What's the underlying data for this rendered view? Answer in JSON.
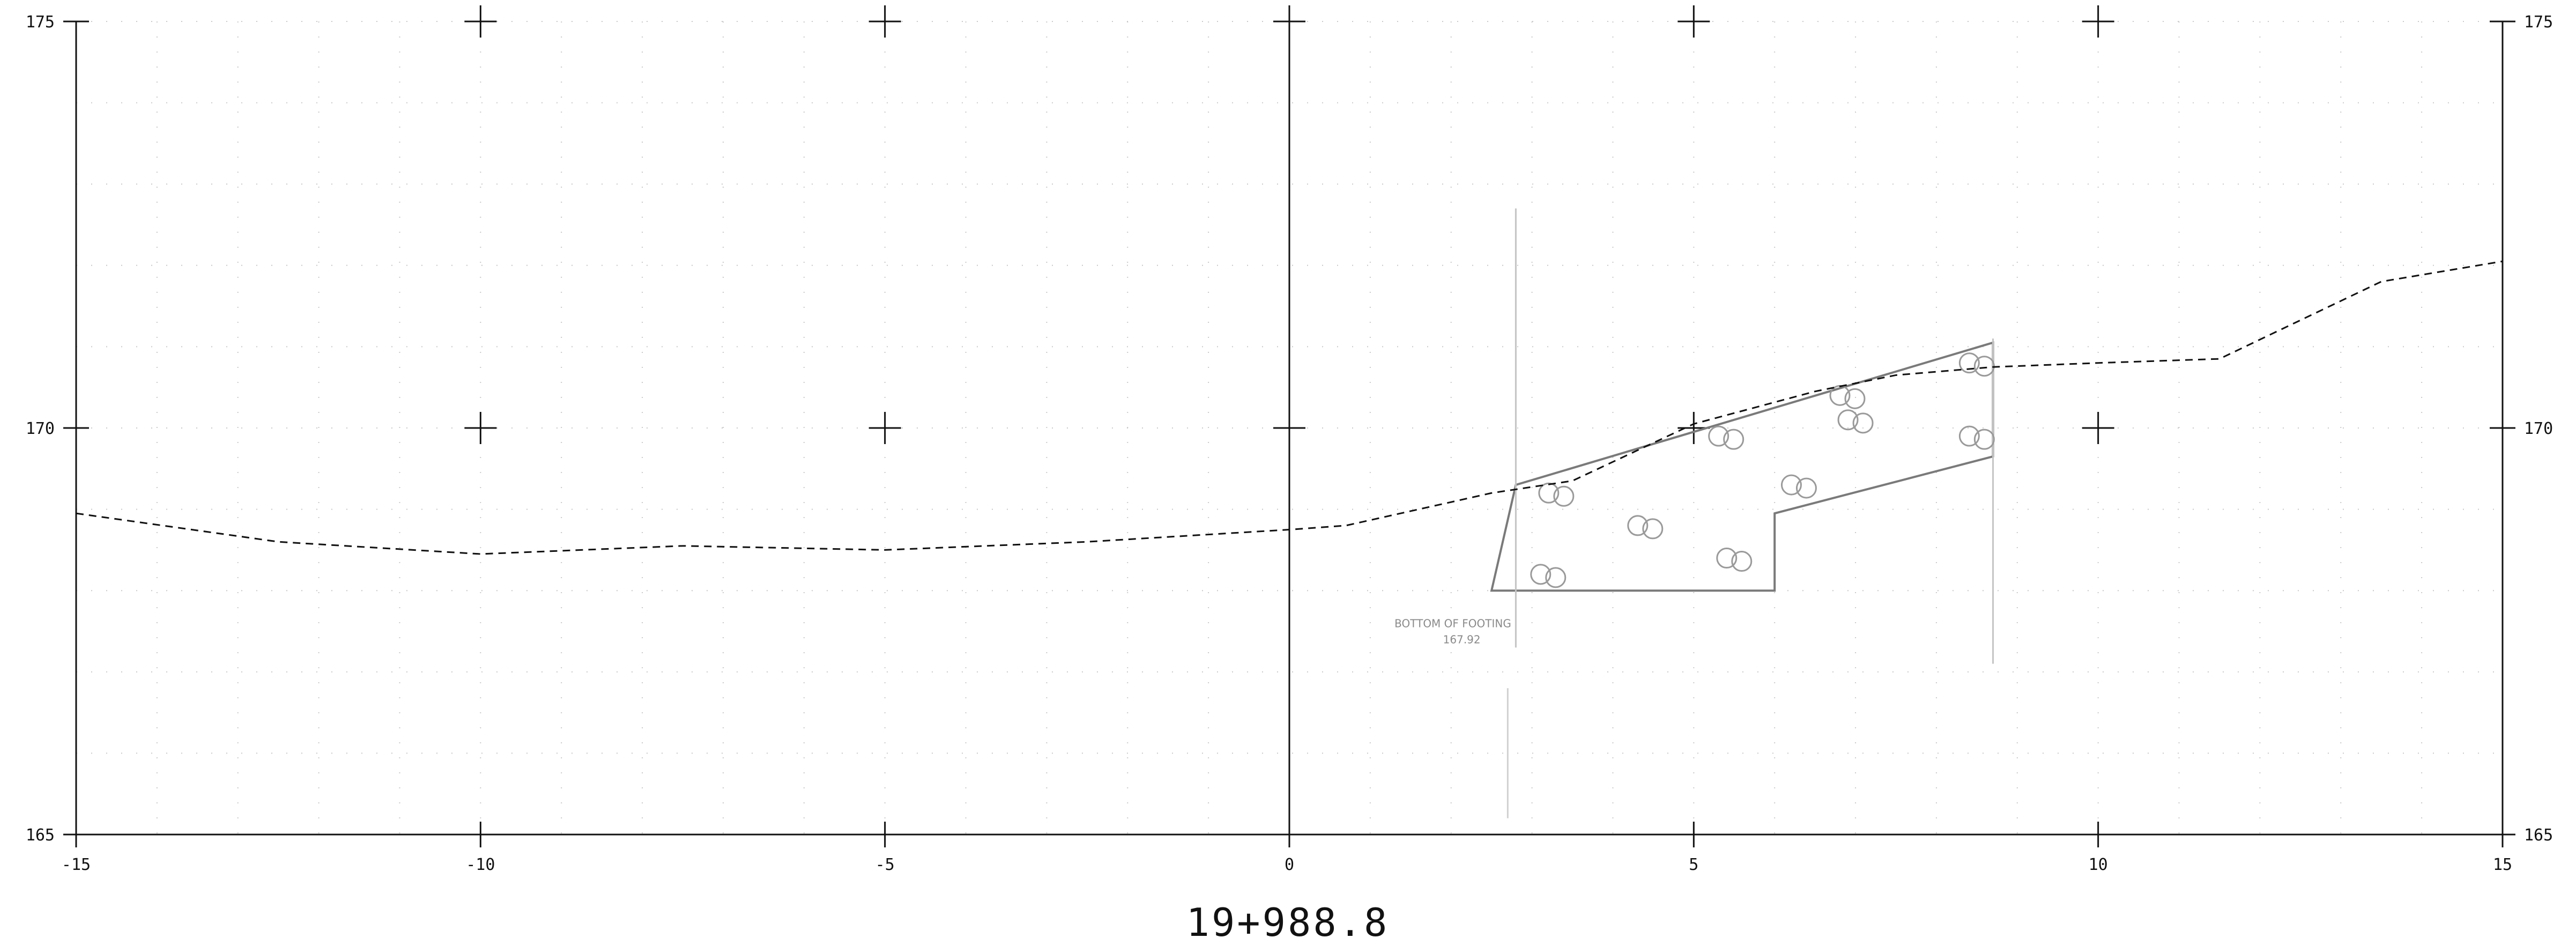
{
  "chart_data": {
    "type": "line",
    "title": "",
    "xlabel": "",
    "ylabel": "",
    "xlim": [
      -15,
      15
    ],
    "ylim": [
      165,
      175
    ],
    "x_ticks": [
      -15,
      -10,
      -5,
      0,
      5,
      10,
      15
    ],
    "x_tick_labels": [
      "-15",
      "-10",
      "-5",
      "0",
      "5",
      "10",
      "15"
    ],
    "y_ticks": [
      165,
      170,
      175
    ],
    "y_tick_labels": [
      "165",
      "170",
      "175"
    ],
    "grid": "dotted minor grid with cross markers at major intersections",
    "series": [
      {
        "style": "dashed",
        "x": [
          -15,
          -12.5,
          -10,
          -7.5,
          -5,
          -2.5,
          0,
          0.7,
          2.5,
          3.5,
          5,
          6.5,
          7.5,
          8.7,
          10,
          11.5,
          13.5,
          15
        ],
        "y": [
          168.95,
          168.6,
          168.45,
          168.55,
          168.5,
          168.6,
          168.75,
          168.8,
          169.2,
          169.35,
          170.05,
          170.45,
          170.65,
          170.75,
          170.8,
          170.85,
          171.8,
          172.05
        ]
      }
    ],
    "footing_outline": {
      "x": [
        2.5,
        6.0,
        6.0,
        8.7,
        8.7,
        2.8
      ],
      "y": [
        168.0,
        168.0,
        168.95,
        169.65,
        171.05,
        169.3
      ]
    },
    "annotations": [
      {
        "text": "BOTTOM OF FOOTING",
        "x": 1.3,
        "y": 167.55
      },
      {
        "text": "167.92",
        "x": 1.9,
        "y": 167.35
      }
    ]
  },
  "station_label": "19+988.8"
}
